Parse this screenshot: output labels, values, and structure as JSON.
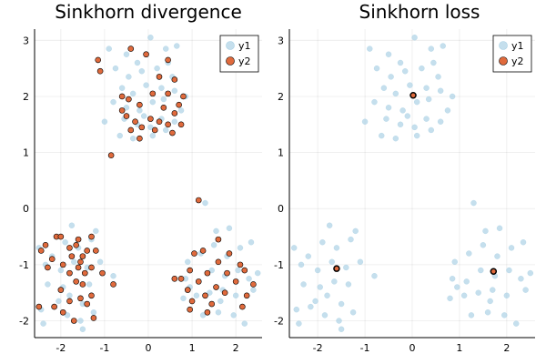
{
  "chart_data": [
    {
      "type": "scatter",
      "title": "Sinkhorn divergence",
      "xlim": [
        -2.6,
        2.6
      ],
      "ylim": [
        -2.3,
        3.2
      ],
      "xticks": [
        "-2",
        "-1",
        "0",
        "1",
        "2"
      ],
      "yticks": [
        "-2",
        "-1",
        "0",
        "1",
        "2",
        "3"
      ],
      "grid": true,
      "legend": "top-right",
      "series": [
        {
          "name": "y1",
          "color": "#a6cee3",
          "points": [
            [
              -0.9,
              2.85
            ],
            [
              -0.5,
              2.75
            ],
            [
              -0.25,
              2.6
            ],
            [
              0.05,
              3.05
            ],
            [
              0.4,
              2.85
            ],
            [
              0.65,
              2.9
            ],
            [
              -0.75,
              2.5
            ],
            [
              -0.45,
              2.35
            ],
            [
              -0.15,
              2.45
            ],
            [
              0.2,
              2.5
            ],
            [
              0.45,
              2.6
            ],
            [
              -0.6,
              2.15
            ],
            [
              -0.35,
              2.05
            ],
            [
              -0.05,
              2.2
            ],
            [
              0.3,
              2.15
            ],
            [
              0.6,
              2.1
            ],
            [
              0.85,
              2.0
            ],
            [
              -0.8,
              1.9
            ],
            [
              -0.5,
              1.8
            ],
            [
              -0.2,
              1.75
            ],
            [
              0.1,
              1.9
            ],
            [
              0.35,
              1.95
            ],
            [
              0.75,
              1.75
            ],
            [
              -0.55,
              1.6
            ],
            [
              -0.25,
              1.5
            ],
            [
              0.05,
              1.45
            ],
            [
              0.3,
              1.6
            ],
            [
              0.6,
              1.55
            ],
            [
              -0.65,
              1.3
            ],
            [
              -0.35,
              1.25
            ],
            [
              0.1,
              1.3
            ],
            [
              0.4,
              1.4
            ],
            [
              -1.0,
              1.55
            ],
            [
              -0.1,
              1.65
            ],
            [
              0.55,
              2.35
            ],
            [
              -2.5,
              -0.7
            ],
            [
              -2.2,
              -0.85
            ],
            [
              -1.9,
              -0.6
            ],
            [
              -1.6,
              -0.7
            ],
            [
              -1.3,
              -0.55
            ],
            [
              -2.35,
              -1.0
            ],
            [
              -2.0,
              -1.1
            ],
            [
              -1.7,
              -0.95
            ],
            [
              -1.4,
              -1.05
            ],
            [
              -1.1,
              -0.95
            ],
            [
              -2.3,
              -1.35
            ],
            [
              -1.95,
              -1.4
            ],
            [
              -1.65,
              -1.3
            ],
            [
              -1.35,
              -1.35
            ],
            [
              -2.45,
              -1.8
            ],
            [
              -2.15,
              -1.75
            ],
            [
              -1.85,
              -1.9
            ],
            [
              -1.55,
              -2.0
            ],
            [
              -1.25,
              -1.85
            ],
            [
              -2.4,
              -2.05
            ],
            [
              -1.8,
              -1.55
            ],
            [
              -1.5,
              -1.7
            ],
            [
              -0.8,
              -1.2
            ],
            [
              -1.2,
              -0.4
            ],
            [
              -1.75,
              -0.3
            ],
            [
              -1.5,
              -2.15
            ],
            [
              -2.05,
              -1.65
            ],
            [
              0.9,
              -0.95
            ],
            [
              1.2,
              -0.8
            ],
            [
              1.5,
              -0.65
            ],
            [
              1.8,
              -0.85
            ],
            [
              2.1,
              -0.7
            ],
            [
              2.35,
              -0.6
            ],
            [
              0.85,
              -1.25
            ],
            [
              1.15,
              -1.3
            ],
            [
              1.45,
              -1.1
            ],
            [
              1.75,
              -1.2
            ],
            [
              2.05,
              -1.1
            ],
            [
              2.3,
              -1.25
            ],
            [
              0.8,
              -1.6
            ],
            [
              1.1,
              -1.55
            ],
            [
              1.4,
              -1.5
            ],
            [
              1.7,
              -1.45
            ],
            [
              2.0,
              -1.55
            ],
            [
              2.4,
              -1.45
            ],
            [
              1.25,
              -1.9
            ],
            [
              1.6,
              -1.85
            ],
            [
              1.95,
              -1.9
            ],
            [
              2.2,
              -2.05
            ],
            [
              1.55,
              -0.4
            ],
            [
              1.3,
              0.1
            ],
            [
              1.85,
              -0.35
            ],
            [
              0.95,
              -1.4
            ],
            [
              2.5,
              -1.15
            ],
            [
              1.65,
              -1.65
            ]
          ]
        },
        {
          "name": "y2",
          "color": "#e06a3c",
          "points": [
            [
              -1.15,
              2.65
            ],
            [
              -0.4,
              2.85
            ],
            [
              -0.05,
              2.75
            ],
            [
              0.45,
              2.65
            ],
            [
              -1.1,
              2.45
            ],
            [
              0.25,
              2.35
            ],
            [
              0.6,
              2.3
            ],
            [
              -0.6,
              2.0
            ],
            [
              -0.45,
              1.95
            ],
            [
              0.1,
              2.05
            ],
            [
              0.45,
              2.05
            ],
            [
              0.8,
              2.0
            ],
            [
              0.7,
              1.85
            ],
            [
              -0.2,
              1.85
            ],
            [
              0.35,
              1.8
            ],
            [
              -0.6,
              1.75
            ],
            [
              -0.5,
              1.65
            ],
            [
              0.6,
              1.7
            ],
            [
              -0.3,
              1.55
            ],
            [
              0.05,
              1.6
            ],
            [
              0.25,
              1.55
            ],
            [
              0.45,
              1.5
            ],
            [
              -0.15,
              1.45
            ],
            [
              0.75,
              1.5
            ],
            [
              -0.4,
              1.4
            ],
            [
              0.15,
              1.4
            ],
            [
              0.55,
              1.35
            ],
            [
              -0.2,
              1.25
            ],
            [
              -0.85,
              0.95
            ],
            [
              -2.45,
              -0.75
            ],
            [
              -2.35,
              -0.65
            ],
            [
              -2.1,
              -0.5
            ],
            [
              -2.0,
              -0.5
            ],
            [
              -1.8,
              -0.7
            ],
            [
              -1.65,
              -0.65
            ],
            [
              -1.5,
              -0.85
            ],
            [
              -1.3,
              -0.5
            ],
            [
              -1.2,
              -0.75
            ],
            [
              -1.4,
              -0.75
            ],
            [
              -1.55,
              -0.95
            ],
            [
              -1.75,
              -0.85
            ],
            [
              -2.2,
              -0.9
            ],
            [
              -1.95,
              -1.0
            ],
            [
              -1.8,
              -1.15
            ],
            [
              -1.6,
              -1.05
            ],
            [
              -1.45,
              -1.15
            ],
            [
              -1.3,
              -1.05
            ],
            [
              -2.3,
              -1.05
            ],
            [
              -1.65,
              -1.3
            ],
            [
              -1.5,
              -1.35
            ],
            [
              -2.0,
              -1.45
            ],
            [
              -1.3,
              -1.55
            ],
            [
              -1.55,
              -1.6
            ],
            [
              -1.8,
              -1.65
            ],
            [
              -2.15,
              -1.75
            ],
            [
              -2.5,
              -1.75
            ],
            [
              -1.25,
              -1.95
            ],
            [
              -1.7,
              -2.0
            ],
            [
              -1.95,
              -1.85
            ],
            [
              -1.4,
              -1.7
            ],
            [
              -0.8,
              -1.35
            ],
            [
              -1.05,
              -1.15
            ],
            [
              -1.6,
              -0.55
            ],
            [
              1.15,
              0.15
            ],
            [
              1.6,
              -0.55
            ],
            [
              1.25,
              -0.75
            ],
            [
              1.05,
              -0.8
            ],
            [
              1.6,
              -0.95
            ],
            [
              2.1,
              -1.0
            ],
            [
              0.95,
              -1.1
            ],
            [
              1.35,
              -1.15
            ],
            [
              1.8,
              -1.15
            ],
            [
              2.2,
              -1.1
            ],
            [
              0.75,
              -1.25
            ],
            [
              1.15,
              -1.3
            ],
            [
              1.55,
              -1.4
            ],
            [
              2.0,
              -1.3
            ],
            [
              2.4,
              -1.35
            ],
            [
              0.9,
              -1.45
            ],
            [
              1.3,
              -1.55
            ],
            [
              1.75,
              -1.5
            ],
            [
              2.25,
              -1.55
            ],
            [
              1.0,
              -1.65
            ],
            [
              1.45,
              -1.7
            ],
            [
              0.95,
              -1.8
            ],
            [
              1.35,
              -1.85
            ],
            [
              2.15,
              -1.75
            ],
            [
              0.6,
              -1.25
            ],
            [
              1.85,
              -0.8
            ]
          ]
        }
      ]
    },
    {
      "type": "scatter",
      "title": "Sinkhorn loss",
      "xlim": [
        -2.6,
        2.6
      ],
      "ylim": [
        -2.3,
        3.2
      ],
      "xticks": [
        "-2",
        "-1",
        "0",
        "1",
        "2"
      ],
      "yticks": [
        "-2",
        "-1",
        "0",
        "1",
        "2",
        "3"
      ],
      "grid": true,
      "legend": "top-right",
      "series": [
        {
          "name": "y1",
          "color": "#a6cee3",
          "points": [
            [
              -0.9,
              2.85
            ],
            [
              -0.5,
              2.75
            ],
            [
              -0.25,
              2.6
            ],
            [
              0.05,
              3.05
            ],
            [
              0.4,
              2.85
            ],
            [
              0.65,
              2.9
            ],
            [
              -0.75,
              2.5
            ],
            [
              -0.45,
              2.35
            ],
            [
              -0.15,
              2.45
            ],
            [
              0.2,
              2.5
            ],
            [
              0.45,
              2.6
            ],
            [
              -0.6,
              2.15
            ],
            [
              -0.35,
              2.05
            ],
            [
              -0.05,
              2.2
            ],
            [
              0.3,
              2.15
            ],
            [
              0.6,
              2.1
            ],
            [
              0.85,
              2.0
            ],
            [
              -0.8,
              1.9
            ],
            [
              -0.5,
              1.8
            ],
            [
              -0.2,
              1.75
            ],
            [
              0.1,
              1.9
            ],
            [
              0.35,
              1.95
            ],
            [
              0.75,
              1.75
            ],
            [
              -0.55,
              1.6
            ],
            [
              -0.25,
              1.5
            ],
            [
              0.05,
              1.45
            ],
            [
              0.3,
              1.6
            ],
            [
              0.6,
              1.55
            ],
            [
              -0.65,
              1.3
            ],
            [
              -0.35,
              1.25
            ],
            [
              0.1,
              1.3
            ],
            [
              0.4,
              1.4
            ],
            [
              -1.0,
              1.55
            ],
            [
              -0.1,
              1.65
            ],
            [
              0.55,
              2.35
            ],
            [
              -2.5,
              -0.7
            ],
            [
              -2.2,
              -0.85
            ],
            [
              -1.9,
              -0.6
            ],
            [
              -1.6,
              -0.7
            ],
            [
              -1.3,
              -0.55
            ],
            [
              -2.35,
              -1.0
            ],
            [
              -2.0,
              -1.1
            ],
            [
              -1.7,
              -0.95
            ],
            [
              -1.4,
              -1.05
            ],
            [
              -1.1,
              -0.95
            ],
            [
              -2.3,
              -1.35
            ],
            [
              -1.95,
              -1.4
            ],
            [
              -1.65,
              -1.3
            ],
            [
              -1.35,
              -1.35
            ],
            [
              -2.45,
              -1.8
            ],
            [
              -2.15,
              -1.75
            ],
            [
              -1.85,
              -1.9
            ],
            [
              -1.55,
              -2.0
            ],
            [
              -1.25,
              -1.85
            ],
            [
              -2.4,
              -2.05
            ],
            [
              -1.8,
              -1.55
            ],
            [
              -1.5,
              -1.7
            ],
            [
              -0.8,
              -1.2
            ],
            [
              -1.2,
              -0.4
            ],
            [
              -1.75,
              -0.3
            ],
            [
              -1.5,
              -2.15
            ],
            [
              -2.05,
              -1.65
            ],
            [
              0.9,
              -0.95
            ],
            [
              1.2,
              -0.8
            ],
            [
              1.5,
              -0.65
            ],
            [
              1.8,
              -0.85
            ],
            [
              2.1,
              -0.7
            ],
            [
              2.35,
              -0.6
            ],
            [
              0.85,
              -1.25
            ],
            [
              1.15,
              -1.3
            ],
            [
              1.45,
              -1.1
            ],
            [
              1.75,
              -1.2
            ],
            [
              2.05,
              -1.1
            ],
            [
              2.3,
              -1.25
            ],
            [
              0.8,
              -1.6
            ],
            [
              1.1,
              -1.55
            ],
            [
              1.4,
              -1.5
            ],
            [
              1.7,
              -1.45
            ],
            [
              2.0,
              -1.55
            ],
            [
              2.4,
              -1.45
            ],
            [
              1.25,
              -1.9
            ],
            [
              1.6,
              -1.85
            ],
            [
              1.95,
              -1.9
            ],
            [
              2.2,
              -2.05
            ],
            [
              1.55,
              -0.4
            ],
            [
              1.3,
              0.1
            ],
            [
              1.85,
              -0.35
            ],
            [
              0.95,
              -1.4
            ],
            [
              2.5,
              -1.15
            ],
            [
              1.65,
              -1.65
            ]
          ]
        },
        {
          "name": "y2",
          "color": "#e06a3c",
          "points": [
            [
              0.02,
              2.02
            ],
            [
              -1.6,
              -1.07
            ],
            [
              1.72,
              -1.12
            ]
          ]
        }
      ]
    }
  ]
}
